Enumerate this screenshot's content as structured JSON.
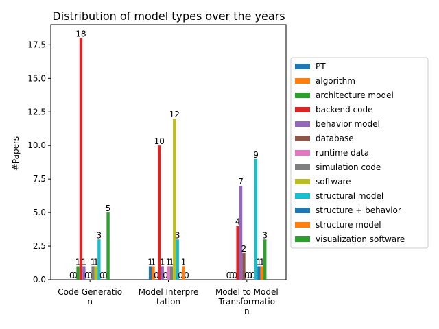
{
  "chart_data": {
    "type": "bar",
    "title": "Distribution of model types over the years",
    "xlabel": "",
    "ylabel": "#Papers",
    "ylim": [
      0,
      19
    ],
    "yticks": [
      "0.0",
      "2.5",
      "5.0",
      "7.5",
      "10.0",
      "12.5",
      "15.0",
      "17.5"
    ],
    "categories": [
      "Code Generatio\nn",
      "Model Interpre\ntation",
      "Model to Model\nTransformatio\nn"
    ],
    "legend_position": "right",
    "grid": false,
    "series": [
      {
        "name": "PT",
        "color": "#1f77b4",
        "values": [
          0,
          1,
          0
        ]
      },
      {
        "name": "algorithm",
        "color": "#ff7f0e",
        "values": [
          0,
          1,
          0
        ]
      },
      {
        "name": "architecture model",
        "color": "#2ca02c",
        "values": [
          1,
          0,
          0
        ]
      },
      {
        "name": "backend code",
        "color": "#d62728",
        "values": [
          18,
          10,
          4
        ]
      },
      {
        "name": "behavior model",
        "color": "#9467bd",
        "values": [
          1,
          1,
          7
        ]
      },
      {
        "name": "database",
        "color": "#8c564b",
        "values": [
          0,
          0,
          2
        ]
      },
      {
        "name": "runtime data",
        "color": "#e377c2",
        "values": [
          0,
          1,
          0
        ]
      },
      {
        "name": "simulation code",
        "color": "#7f7f7f",
        "values": [
          1,
          1,
          0
        ]
      },
      {
        "name": "software",
        "color": "#bcbd22",
        "values": [
          1,
          12,
          0
        ]
      },
      {
        "name": "structural model",
        "color": "#17becf",
        "values": [
          3,
          3,
          9
        ]
      },
      {
        "name": "structure + behavior",
        "color": "#1f77b4",
        "values": [
          0,
          0,
          1
        ]
      },
      {
        "name": "structure model",
        "color": "#ff7f0e",
        "values": [
          0,
          1,
          1
        ]
      },
      {
        "name": "visualization software",
        "color": "#2ca02c",
        "values": [
          5,
          0,
          3
        ]
      }
    ]
  }
}
